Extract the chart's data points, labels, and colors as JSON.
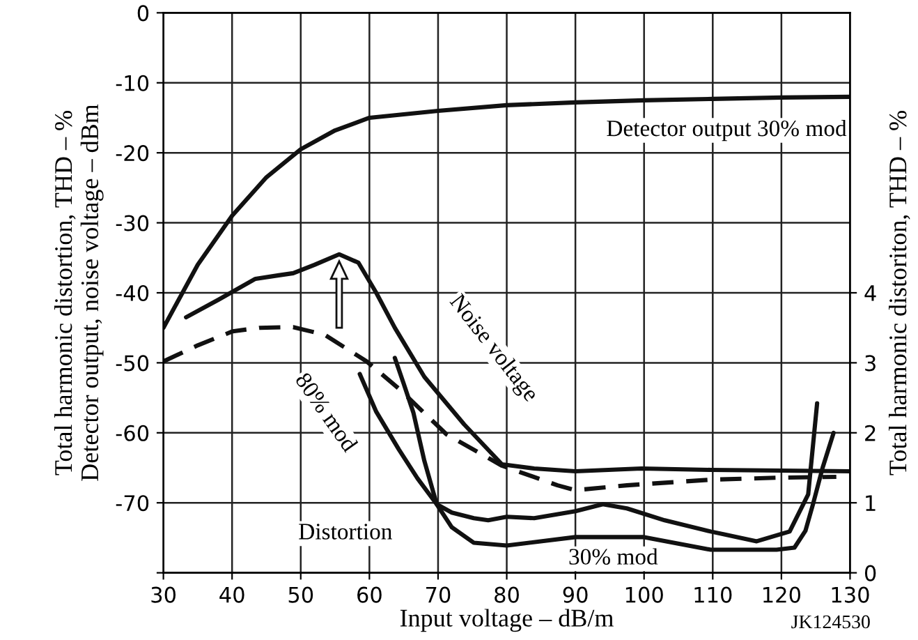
{
  "chart_data": {
    "type": "line",
    "xlabel": "Input voltage – dB/m",
    "ylabel": "Total harmonic distortion, THD – %\nDetector output, noise voltage – dBm",
    "y2label": "Total harmonic distoriton, THD – %",
    "xlim": [
      30,
      130
    ],
    "xticks": [
      30,
      40,
      50,
      60,
      70,
      80,
      90,
      100,
      110,
      120,
      130
    ],
    "ylim": [
      -80,
      0
    ],
    "yticks": [
      0,
      -10,
      -20,
      -30,
      -40,
      -50,
      -60,
      -70,
      {
        "value": -80,
        "label": null
      }
    ],
    "y2lim": [
      0,
      8
    ],
    "y2ticks": [
      0,
      1,
      2,
      3,
      4
    ],
    "grid": true,
    "marker": "none",
    "series": [
      {
        "color": "#111111",
        "line_style": "solid",
        "x": [
          30,
          35,
          40,
          45,
          50,
          55,
          60,
          70,
          80,
          90,
          100,
          110,
          120,
          130
        ],
        "values": [
          -45,
          -36,
          -29,
          -23.5,
          -19.5,
          -16.8,
          -15,
          -14,
          -13.2,
          -12.8,
          -12.5,
          -12.3,
          -12.1,
          -12
        ]
      },
      {
        "color": "#111111",
        "line_style": "solid",
        "x": [
          33.3,
          38,
          43.4,
          46.8,
          48.9,
          52,
          55.6,
          58.4,
          61,
          63.7,
          68,
          73.8,
          79.3,
          84,
          90,
          99.6,
          109.7,
          120,
          130
        ],
        "values": [
          -43.5,
          -41,
          -38,
          -37.5,
          -37.2,
          -36,
          -34.5,
          -35.7,
          -40,
          -45,
          -52,
          -58.8,
          -64.5,
          -65.1,
          -65.5,
          -65.1,
          -65.3,
          -65.4,
          -65.5
        ]
      },
      {
        "color": "#111111",
        "line_style": "dashed",
        "x": [
          30,
          35,
          40.1,
          44,
          48.9,
          53.5,
          59.6,
          64.3,
          71.2,
          79.3,
          87.4,
          90,
          97.5,
          109.7,
          120,
          128
        ],
        "values": [
          -49.8,
          -47.5,
          -45.5,
          -45,
          -44.9,
          -46,
          -49.8,
          -53.7,
          -60.2,
          -64.7,
          -67.5,
          -68.2,
          -67.5,
          -66.7,
          -66.4,
          -66.3
        ]
      },
      {
        "color": "#111111",
        "line_style": "solid",
        "axis": "y2",
        "x": [
          58.6,
          61,
          64.3,
          67,
          69.8,
          72,
          75.2,
          77.3,
          80,
          84,
          90,
          94,
          97.5,
          103,
          109.7,
          116.4,
          121.2,
          123.9,
          125.2
        ],
        "values": [
          2.84,
          2.3,
          1.76,
          1.35,
          0.98,
          0.86,
          0.78,
          0.75,
          0.8,
          0.78,
          0.88,
          0.98,
          0.92,
          0.75,
          0.59,
          0.45,
          0.59,
          1.12,
          2.42
        ]
      },
      {
        "color": "#111111",
        "line_style": "solid",
        "axis": "y2",
        "x": [
          63.7,
          65,
          66.4,
          68,
          69.8,
          72,
          75.2,
          80,
          90,
          100,
          109.7,
          119.3,
          121.9,
          123.5,
          124.6,
          126,
          127.6
        ],
        "values": [
          3.07,
          2.7,
          2.29,
          1.6,
          0.98,
          0.65,
          0.43,
          0.39,
          0.51,
          0.51,
          0.33,
          0.33,
          0.36,
          0.6,
          0.98,
          1.5,
          2.0
        ]
      }
    ],
    "annotations": [
      "Detector output 30% mod",
      "Noise voltage",
      "80% mod",
      "Distortion",
      "30% mod",
      "JK124530"
    ]
  }
}
